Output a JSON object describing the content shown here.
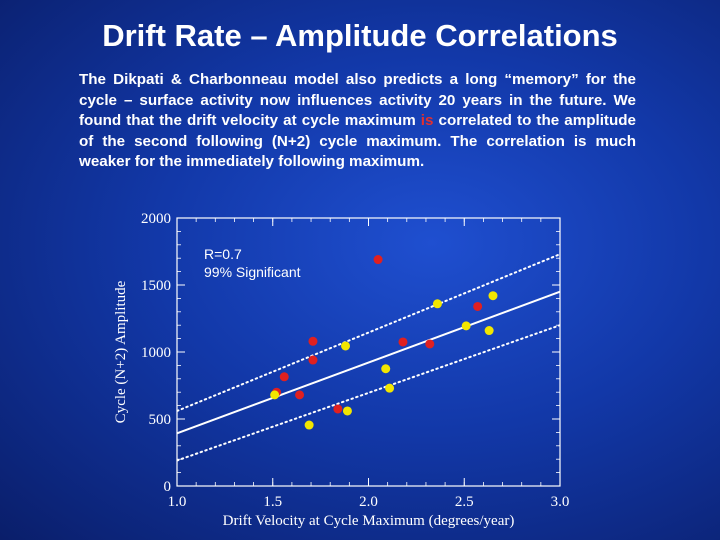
{
  "slide": {
    "title": "Drift Rate – Amplitude Correlations",
    "text_before": "The Dikpati & Charbonneau model also predicts a long “memory” for the cycle – surface activity now influences activity 20 years in the future. We found that the drift velocity at cycle maximum ",
    "text_highlight": "is",
    "text_after": " correlated to the amplitude of the second following (N+2) cycle maximum. The correlation is much weaker for the immediately following maximum."
  },
  "chart_data": {
    "type": "scatter",
    "xlabel": "Drift Velocity at Cycle Maximum (degrees/year)",
    "ylabel": "Cycle (N+2) Amplitude",
    "xlim": [
      1.0,
      3.0
    ],
    "ylim": [
      0,
      2000
    ],
    "xticks": [
      "1.0",
      "1.5",
      "2.0",
      "2.5",
      "3.0"
    ],
    "yticks": [
      "0",
      "500",
      "1000",
      "1500",
      "2000"
    ],
    "annotation_line1": "R=0.7",
    "annotation_line2": "99% Significant",
    "series": [
      {
        "color": "#e02020",
        "points": [
          [
            2.05,
            1690
          ],
          [
            2.57,
            1340
          ],
          [
            1.71,
            1080
          ],
          [
            1.71,
            940
          ],
          [
            2.18,
            1075
          ],
          [
            2.32,
            1060
          ],
          [
            1.56,
            815
          ],
          [
            1.52,
            700
          ],
          [
            1.64,
            680
          ],
          [
            1.84,
            575
          ]
        ]
      },
      {
        "color": "#f2e600",
        "points": [
          [
            2.65,
            1420
          ],
          [
            2.36,
            1360
          ],
          [
            2.51,
            1195
          ],
          [
            2.63,
            1160
          ],
          [
            1.88,
            1045
          ],
          [
            2.09,
            875
          ],
          [
            2.11,
            730
          ],
          [
            1.51,
            680
          ],
          [
            1.89,
            560
          ],
          [
            1.69,
            455
          ]
        ]
      }
    ],
    "fit_line": [
      [
        1.0,
        393
      ],
      [
        3.0,
        1450
      ]
    ],
    "bound_upper": [
      [
        1.0,
        560
      ],
      [
        3.0,
        1730
      ]
    ],
    "bound_lower": [
      [
        1.0,
        190
      ],
      [
        3.0,
        1200
      ]
    ],
    "colors": {
      "line": "#ffffff",
      "axis": "#ffffff"
    }
  }
}
